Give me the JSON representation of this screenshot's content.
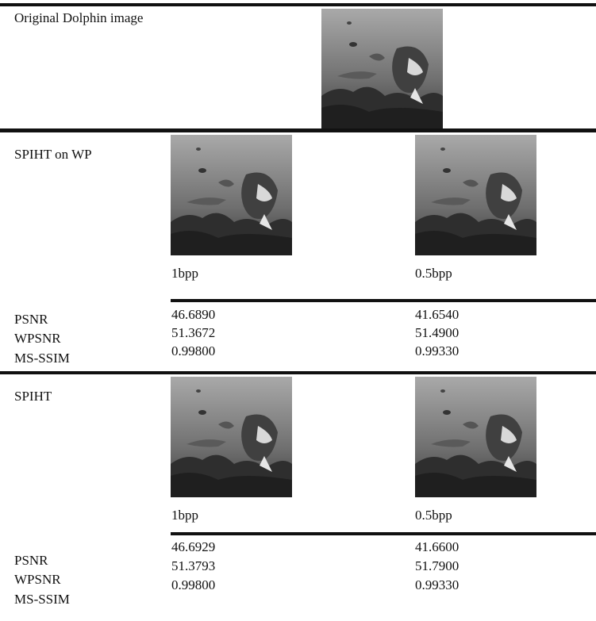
{
  "original": {
    "label": "Original Dolphin image"
  },
  "sections": [
    {
      "label": "SPIHT on WP",
      "captions": [
        "1bpp",
        "0.5bpp"
      ],
      "metrics": [
        "PSNR",
        "WPSNR",
        "MS-SSIM"
      ],
      "values": [
        [
          "46.6890",
          "51.3672",
          "0.99800"
        ],
        [
          "41.6540",
          "51.4900",
          "0.99330"
        ]
      ]
    },
    {
      "label": "SPIHT",
      "captions": [
        "1bpp",
        "0.5bpp"
      ],
      "metrics": [
        "PSNR",
        "WPSNR",
        "MS-SSIM"
      ],
      "values": [
        [
          "46.6929",
          "51.3793",
          "0.99800"
        ],
        [
          "41.6600",
          "51.7900",
          "0.99330"
        ]
      ]
    }
  ]
}
